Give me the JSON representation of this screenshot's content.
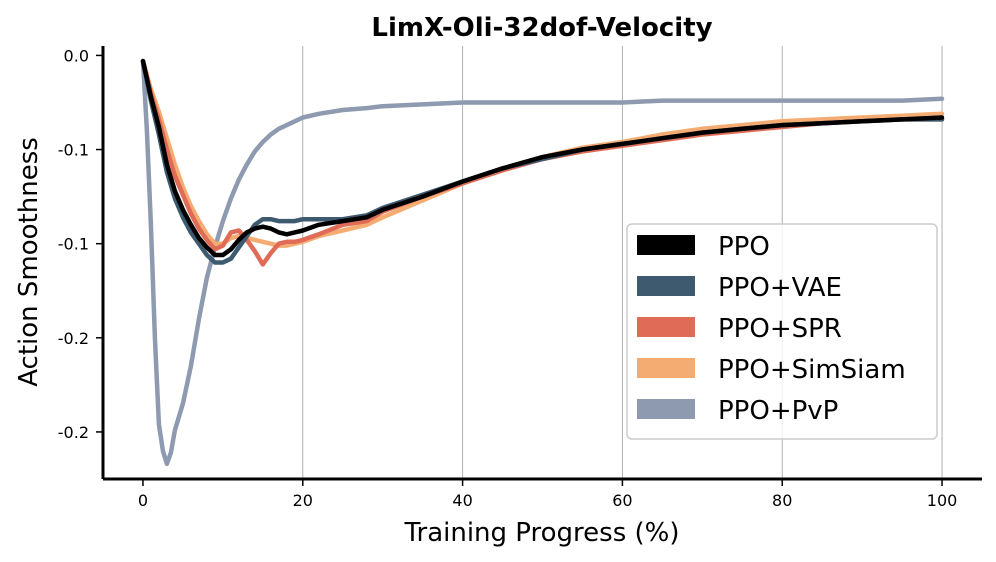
{
  "chart_data": {
    "type": "line",
    "title": "LimX-Oli-32dof-Velocity",
    "xlabel": "Training Progress (%)",
    "ylabel": "Action Smoothness",
    "xlim": [
      -5,
      105
    ],
    "ylim": [
      -0.225,
      0.005
    ],
    "x_ticks": [
      0,
      20,
      40,
      60,
      80,
      100
    ],
    "x_tick_labels": [
      "0",
      "20",
      "40",
      "60",
      "80",
      "100"
    ],
    "y_ticks": [
      0.0,
      -0.05,
      -0.1,
      -0.15,
      -0.2
    ],
    "y_tick_labels": [
      "0.0",
      "-0.1",
      "-0.1",
      "-0.2",
      "-0.2"
    ],
    "grid": "vertical",
    "legend_position": "center-right",
    "series": [
      {
        "name": "PPO",
        "color": "#000000",
        "x": [
          0,
          1,
          2,
          3,
          4,
          5,
          6,
          7,
          8,
          9,
          10,
          11,
          12,
          13,
          14,
          15,
          16,
          17,
          18,
          19,
          20,
          22,
          25,
          28,
          30,
          35,
          40,
          45,
          50,
          55,
          60,
          65,
          70,
          75,
          80,
          85,
          90,
          95,
          100
        ],
        "values": [
          -0.003,
          -0.022,
          -0.038,
          -0.058,
          -0.072,
          -0.082,
          -0.09,
          -0.097,
          -0.102,
          -0.106,
          -0.106,
          -0.103,
          -0.098,
          -0.094,
          -0.092,
          -0.091,
          -0.092,
          -0.094,
          -0.095,
          -0.094,
          -0.093,
          -0.09,
          -0.088,
          -0.086,
          -0.082,
          -0.075,
          -0.067,
          -0.06,
          -0.054,
          -0.05,
          -0.047,
          -0.044,
          -0.041,
          -0.039,
          -0.037,
          -0.036,
          -0.035,
          -0.034,
          -0.033
        ]
      },
      {
        "name": "PPO+VAE",
        "color": "#3d5a6e",
        "x": [
          0,
          1,
          2,
          3,
          4,
          5,
          6,
          7,
          8,
          9,
          10,
          11,
          12,
          13,
          14,
          15,
          16,
          17,
          18,
          19,
          20,
          22,
          25,
          28,
          30,
          35,
          40,
          45,
          50,
          55,
          60,
          65,
          70,
          75,
          80,
          85,
          90,
          95,
          100
        ],
        "values": [
          -0.003,
          -0.024,
          -0.042,
          -0.062,
          -0.076,
          -0.086,
          -0.094,
          -0.1,
          -0.106,
          -0.11,
          -0.11,
          -0.108,
          -0.102,
          -0.096,
          -0.09,
          -0.087,
          -0.087,
          -0.088,
          -0.088,
          -0.088,
          -0.087,
          -0.087,
          -0.087,
          -0.085,
          -0.081,
          -0.074,
          -0.067,
          -0.06,
          -0.055,
          -0.05,
          -0.047,
          -0.044,
          -0.041,
          -0.039,
          -0.037,
          -0.036,
          -0.035,
          -0.034,
          -0.034
        ]
      },
      {
        "name": "PPO+SPR",
        "color": "#e06c58",
        "x": [
          0,
          1,
          2,
          3,
          4,
          5,
          6,
          7,
          8,
          9,
          10,
          11,
          12,
          13,
          14,
          15,
          16,
          17,
          18,
          19,
          20,
          22,
          25,
          28,
          30,
          35,
          40,
          45,
          50,
          55,
          60,
          65,
          70,
          75,
          80,
          85,
          90,
          95,
          100
        ],
        "values": [
          -0.003,
          -0.02,
          -0.034,
          -0.05,
          -0.064,
          -0.074,
          -0.084,
          -0.092,
          -0.098,
          -0.103,
          -0.101,
          -0.094,
          -0.093,
          -0.098,
          -0.104,
          -0.111,
          -0.105,
          -0.1,
          -0.099,
          -0.099,
          -0.098,
          -0.095,
          -0.09,
          -0.088,
          -0.083,
          -0.075,
          -0.068,
          -0.061,
          -0.055,
          -0.051,
          -0.048,
          -0.045,
          -0.042,
          -0.04,
          -0.038,
          -0.036,
          -0.035,
          -0.034,
          -0.034
        ]
      },
      {
        "name": "PPO+SimSiam",
        "color": "#f4ac72",
        "x": [
          0,
          1,
          2,
          3,
          4,
          5,
          6,
          7,
          8,
          9,
          10,
          11,
          12,
          13,
          14,
          15,
          16,
          17,
          18,
          19,
          20,
          22,
          25,
          28,
          30,
          35,
          40,
          45,
          50,
          55,
          60,
          65,
          70,
          75,
          80,
          85,
          90,
          95,
          100
        ],
        "values": [
          -0.003,
          -0.018,
          -0.03,
          -0.044,
          -0.058,
          -0.07,
          -0.08,
          -0.088,
          -0.095,
          -0.1,
          -0.1,
          -0.097,
          -0.096,
          -0.097,
          -0.098,
          -0.099,
          -0.1,
          -0.101,
          -0.101,
          -0.1,
          -0.099,
          -0.096,
          -0.093,
          -0.09,
          -0.086,
          -0.077,
          -0.068,
          -0.06,
          -0.054,
          -0.049,
          -0.046,
          -0.042,
          -0.039,
          -0.037,
          -0.035,
          -0.034,
          -0.033,
          -0.032,
          -0.031
        ]
      },
      {
        "name": "PPO+PvP",
        "color": "#8e9aaf",
        "x": [
          0,
          0.5,
          1,
          1.5,
          2,
          2.5,
          3,
          3.5,
          4,
          4.5,
          5,
          6,
          7,
          8,
          9,
          10,
          11,
          12,
          13,
          14,
          15,
          16,
          17,
          18,
          19,
          20,
          22,
          25,
          28,
          30,
          35,
          40,
          45,
          50,
          55,
          60,
          65,
          70,
          75,
          80,
          85,
          90,
          95,
          100
        ],
        "values": [
          -0.003,
          -0.04,
          -0.09,
          -0.15,
          -0.196,
          -0.21,
          -0.217,
          -0.211,
          -0.199,
          -0.192,
          -0.185,
          -0.165,
          -0.14,
          -0.118,
          -0.102,
          -0.088,
          -0.076,
          -0.066,
          -0.058,
          -0.051,
          -0.046,
          -0.042,
          -0.039,
          -0.037,
          -0.035,
          -0.033,
          -0.031,
          -0.029,
          -0.028,
          -0.027,
          -0.026,
          -0.025,
          -0.025,
          -0.025,
          -0.025,
          -0.025,
          -0.024,
          -0.024,
          -0.024,
          -0.024,
          -0.024,
          -0.024,
          -0.024,
          -0.023
        ]
      }
    ]
  }
}
